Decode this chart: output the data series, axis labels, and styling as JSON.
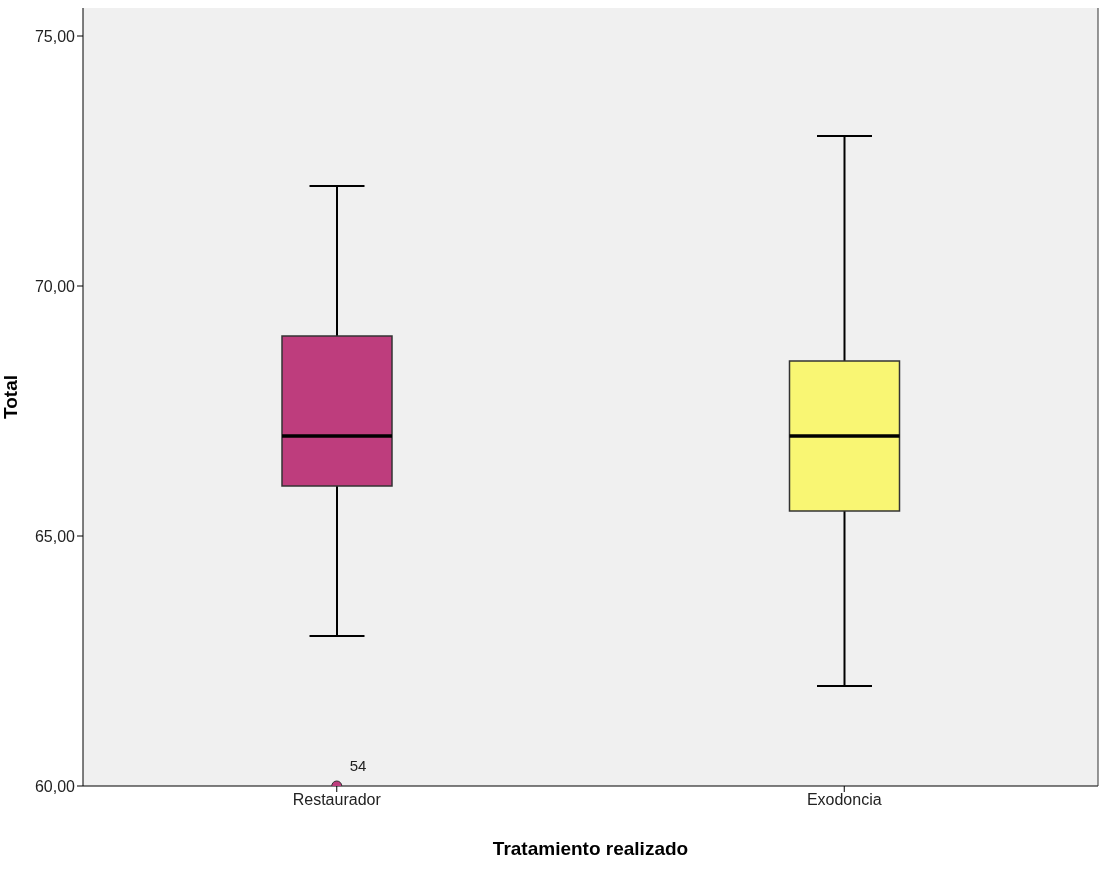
{
  "chart_data": {
    "type": "box",
    "xlabel": "Tratamiento realizado",
    "ylabel": "Total",
    "categories": [
      "Restaurador",
      "Exodoncia"
    ],
    "boxes": [
      {
        "low": 63,
        "q1": 66,
        "median": 67,
        "q3": 69,
        "high": 72,
        "outliers": [
          60
        ]
      },
      {
        "low": 62,
        "q1": 65.5,
        "median": 67,
        "q3": 68.5,
        "high": 73
      }
    ],
    "colors": [
      "#be3d7d",
      "#f9f673"
    ],
    "ylim": [
      60,
      75.56
    ],
    "yticks": [
      {
        "value": 60,
        "label": "60,00"
      },
      {
        "value": 65,
        "label": "65,00"
      },
      {
        "value": 70,
        "label": "70,00"
      },
      {
        "value": 75,
        "label": "75,00"
      }
    ],
    "annotations": [
      "54"
    ]
  }
}
